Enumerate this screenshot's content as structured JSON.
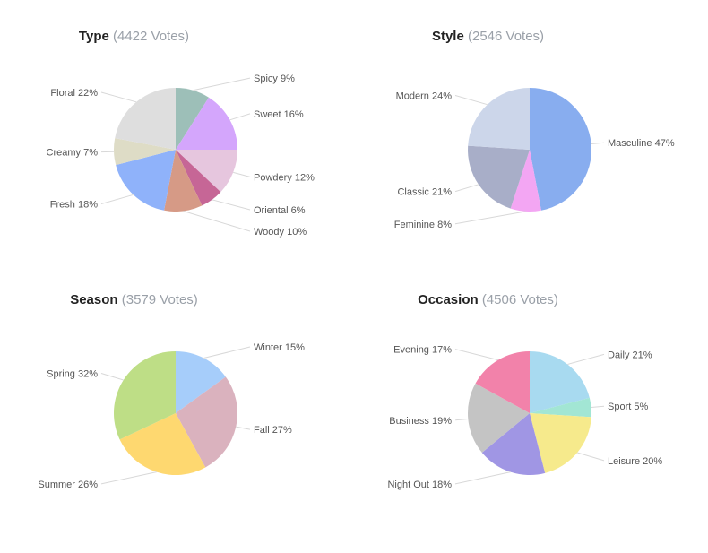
{
  "chart_data": [
    {
      "type": "pie",
      "title": "Type",
      "votes": "(4422 Votes)",
      "slices": [
        {
          "label": "Spicy 9%",
          "value": 9,
          "color": "#9dbfb8",
          "side": "right"
        },
        {
          "label": "Sweet 16%",
          "value": 16,
          "color": "#d4a6fc",
          "side": "right"
        },
        {
          "label": "Powdery 12%",
          "value": 12,
          "color": "#e6c6de",
          "side": "right"
        },
        {
          "label": "Oriental 6%",
          "value": 6,
          "color": "#c66696",
          "side": "right"
        },
        {
          "label": "Woody 10%",
          "value": 10,
          "color": "#d69a86",
          "side": "right"
        },
        {
          "label": "Fresh 18%",
          "value": 18,
          "color": "#8fb2fa",
          "side": "left"
        },
        {
          "label": "Creamy 7%",
          "value": 7,
          "color": "#dedcc6",
          "side": "left"
        },
        {
          "label": "Floral 22%",
          "value": 22,
          "color": "#dedede",
          "side": "left"
        }
      ]
    },
    {
      "type": "pie",
      "title": "Style",
      "votes": "(2546 Votes)",
      "slices": [
        {
          "label": "Masculine 47%",
          "value": 47,
          "color": "#88adef",
          "side": "right"
        },
        {
          "label": "Feminine 8%",
          "value": 8,
          "color": "#f3a6f3",
          "side": "left"
        },
        {
          "label": "Classic 21%",
          "value": 21,
          "color": "#a8aec8",
          "side": "left"
        },
        {
          "label": "Modern 24%",
          "value": 24,
          "color": "#ccd6ea",
          "side": "left"
        }
      ]
    },
    {
      "type": "pie",
      "title": "Season",
      "votes": "(3579 Votes)",
      "slices": [
        {
          "label": "Winter 15%",
          "value": 15,
          "color": "#a6cdfa",
          "side": "right"
        },
        {
          "label": "Fall 27%",
          "value": 27,
          "color": "#dab2be",
          "side": "right"
        },
        {
          "label": "Summer 26%",
          "value": 26,
          "color": "#fed870",
          "side": "left"
        },
        {
          "label": "Spring 32%",
          "value": 32,
          "color": "#bede86",
          "side": "left"
        }
      ]
    },
    {
      "type": "pie",
      "title": "Occasion",
      "votes": "(4506 Votes)",
      "slices": [
        {
          "label": "Daily 21%",
          "value": 21,
          "color": "#a8daf0",
          "side": "right"
        },
        {
          "label": "Sport 5%",
          "value": 5,
          "color": "#a2e6d4",
          "side": "right"
        },
        {
          "label": "Leisure 20%",
          "value": 20,
          "color": "#f6ea8c",
          "side": "right"
        },
        {
          "label": "Night Out 18%",
          "value": 18,
          "color": "#a096e4",
          "side": "left"
        },
        {
          "label": "Business 19%",
          "value": 19,
          "color": "#c4c4c4",
          "side": "left"
        },
        {
          "label": "Evening 17%",
          "value": 17,
          "color": "#f282aa",
          "side": "left"
        }
      ]
    }
  ]
}
